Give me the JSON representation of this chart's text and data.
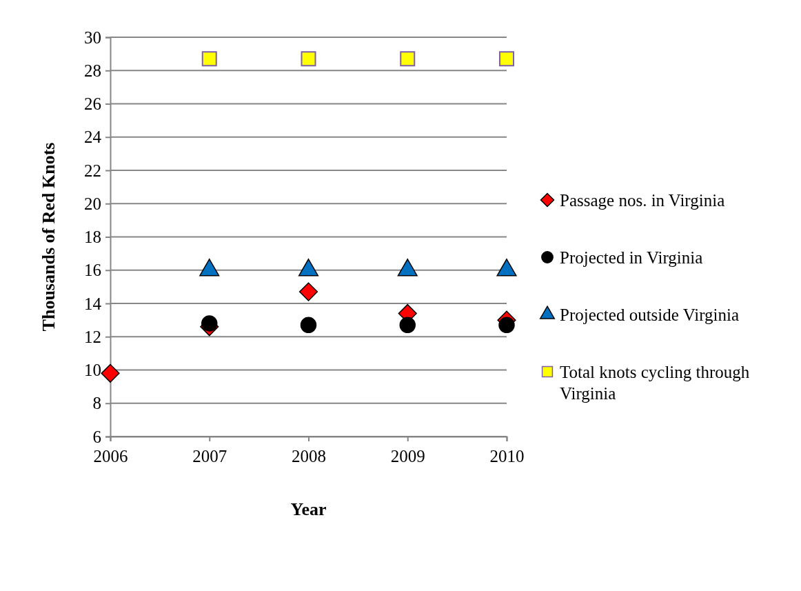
{
  "chart_data": {
    "type": "scatter",
    "xlabel": "Year",
    "ylabel": "Thousands of Red Knots",
    "x": [
      2006,
      2007,
      2008,
      2009,
      2010
    ],
    "xlim": [
      2006,
      2010
    ],
    "xticks": [
      2006,
      2007,
      2008,
      2009,
      2010
    ],
    "ylim": [
      6,
      30
    ],
    "yticks": [
      6,
      8,
      10,
      12,
      14,
      16,
      18,
      20,
      22,
      24,
      26,
      28,
      30
    ],
    "grid": "y",
    "legend": "right",
    "series": [
      {
        "name": "Passage nos. in Virginia",
        "color": "#ff0000",
        "marker": "diamond",
        "values": [
          9.8,
          12.6,
          14.7,
          13.4,
          13.0
        ]
      },
      {
        "name": "Projected in Virginia",
        "color": "#000000",
        "marker": "circle",
        "values": [
          null,
          12.8,
          12.7,
          12.7,
          12.7
        ]
      },
      {
        "name": "Projected outside Virginia",
        "color": "#0070c0",
        "marker": "triangle",
        "values": [
          null,
          16,
          16,
          16,
          16
        ]
      },
      {
        "name": "Total knots cycling through Virginia",
        "color": "#ffff00",
        "marker": "square",
        "values": [
          null,
          28.7,
          28.7,
          28.7,
          28.7
        ]
      }
    ]
  }
}
